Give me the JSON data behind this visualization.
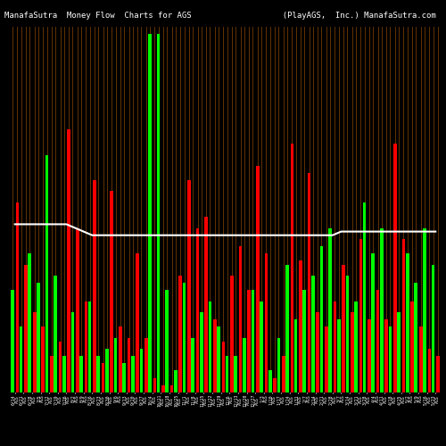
{
  "title": "ManafaSutra  Money Flow  Charts for AGS                   (PlayAGS,  Inc.) ManafaSutra.com",
  "background_color": "#000000",
  "line_color": "#ffffff",
  "bar_data": [
    {
      "green": 0.28,
      "red": 0.52
    },
    {
      "green": 0.18,
      "red": 0.35
    },
    {
      "green": 0.38,
      "red": 0.22
    },
    {
      "green": 0.3,
      "red": 0.18
    },
    {
      "green": 0.65,
      "red": 0.1
    },
    {
      "green": 0.32,
      "red": 0.14
    },
    {
      "green": 0.1,
      "red": 0.72
    },
    {
      "green": 0.22,
      "red": 0.45
    },
    {
      "green": 0.1,
      "red": 0.25
    },
    {
      "green": 0.25,
      "red": 0.58
    },
    {
      "green": 0.1,
      "red": 0.08
    },
    {
      "green": 0.12,
      "red": 0.55
    },
    {
      "green": 0.15,
      "red": 0.18
    },
    {
      "green": 0.08,
      "red": 0.15
    },
    {
      "green": 0.1,
      "red": 0.38
    },
    {
      "green": 0.12,
      "red": 0.15
    },
    {
      "green": 0.98,
      "red": 0.04
    },
    {
      "green": 0.98,
      "red": 0.02
    },
    {
      "green": 0.28,
      "red": 0.02
    },
    {
      "green": 0.06,
      "red": 0.32
    },
    {
      "green": 0.3,
      "red": 0.58
    },
    {
      "green": 0.15,
      "red": 0.45
    },
    {
      "green": 0.22,
      "red": 0.48
    },
    {
      "green": 0.25,
      "red": 0.2
    },
    {
      "green": 0.18,
      "red": 0.14
    },
    {
      "green": 0.1,
      "red": 0.32
    },
    {
      "green": 0.1,
      "red": 0.4
    },
    {
      "green": 0.15,
      "red": 0.28
    },
    {
      "green": 0.28,
      "red": 0.62
    },
    {
      "green": 0.25,
      "red": 0.38
    },
    {
      "green": 0.06,
      "red": 0.04
    },
    {
      "green": 0.15,
      "red": 0.1
    },
    {
      "green": 0.35,
      "red": 0.68
    },
    {
      "green": 0.2,
      "red": 0.36
    },
    {
      "green": 0.28,
      "red": 0.6
    },
    {
      "green": 0.32,
      "red": 0.22
    },
    {
      "green": 0.4,
      "red": 0.18
    },
    {
      "green": 0.45,
      "red": 0.25
    },
    {
      "green": 0.2,
      "red": 0.35
    },
    {
      "green": 0.32,
      "red": 0.22
    },
    {
      "green": 0.25,
      "red": 0.42
    },
    {
      "green": 0.52,
      "red": 0.2
    },
    {
      "green": 0.38,
      "red": 0.28
    },
    {
      "green": 0.45,
      "red": 0.2
    },
    {
      "green": 0.18,
      "red": 0.68
    },
    {
      "green": 0.22,
      "red": 0.42
    },
    {
      "green": 0.38,
      "red": 0.25
    },
    {
      "green": 0.3,
      "red": 0.18
    },
    {
      "green": 0.45,
      "red": 0.12
    },
    {
      "green": 0.35,
      "red": 0.1
    }
  ],
  "x_labels": [
    "6/14\nAGS",
    "6/21\nAGS",
    "6/28\nAGS",
    "7/5\nAGS",
    "7/12\nAGS",
    "7/19\nAGS",
    "7/26\nAGS",
    "8/2\nAGS",
    "8/9\nAGS",
    "8/16\nAGS",
    "8/23\nAGS",
    "8/30\nAGS",
    "9/6\nAGS",
    "9/13\nAGS",
    "9/20\nAGS",
    "9/27\nAGS",
    "10/4\nAGS",
    "10/11\nAGS",
    "10/18\nAGS",
    "10/25\nAGS",
    "11/1\nAGS",
    "11/8\nAGS",
    "11/15\nAGS",
    "11/22\nAGS",
    "11/29\nAGS",
    "12/6\nAGS",
    "12/13\nAGS",
    "12/20\nAGS",
    "12/27\nAGS",
    "1/3\nAGS",
    "1/10\nAGS",
    "1/17\nAGS",
    "1/24\nAGS",
    "1/31\nAGS",
    "2/7\nAGS",
    "2/14\nAGS",
    "2/21\nAGS",
    "2/28\nAGS",
    "3/7\nAGS",
    "3/14\nAGS",
    "3/21\nAGS",
    "3/28\nAGS",
    "4/4\nAGS",
    "4/11\nAGS",
    "4/18\nAGS",
    "4/25\nAGS",
    "5/2\nAGS",
    "5/9\nAGS",
    "5/16\nAGS",
    "5/23\nAGS"
  ],
  "green_color": "#00ff00",
  "red_color": "#ff0000",
  "stem_color": "#8b4500",
  "white_line": [
    0.46,
    0.46,
    0.46,
    0.46,
    0.46,
    0.46,
    0.46,
    0.45,
    0.44,
    0.43,
    0.43,
    0.43,
    0.43,
    0.43,
    0.43,
    0.43,
    0.43,
    0.43,
    0.43,
    0.43,
    0.43,
    0.43,
    0.43,
    0.43,
    0.43,
    0.43,
    0.43,
    0.43,
    0.43,
    0.43,
    0.43,
    0.43,
    0.43,
    0.43,
    0.43,
    0.43,
    0.43,
    0.43,
    0.44,
    0.44,
    0.44,
    0.44,
    0.44,
    0.44,
    0.44,
    0.44,
    0.44,
    0.44,
    0.44,
    0.44
  ],
  "title_fontsize": 6.5,
  "tick_fontsize": 3.5
}
